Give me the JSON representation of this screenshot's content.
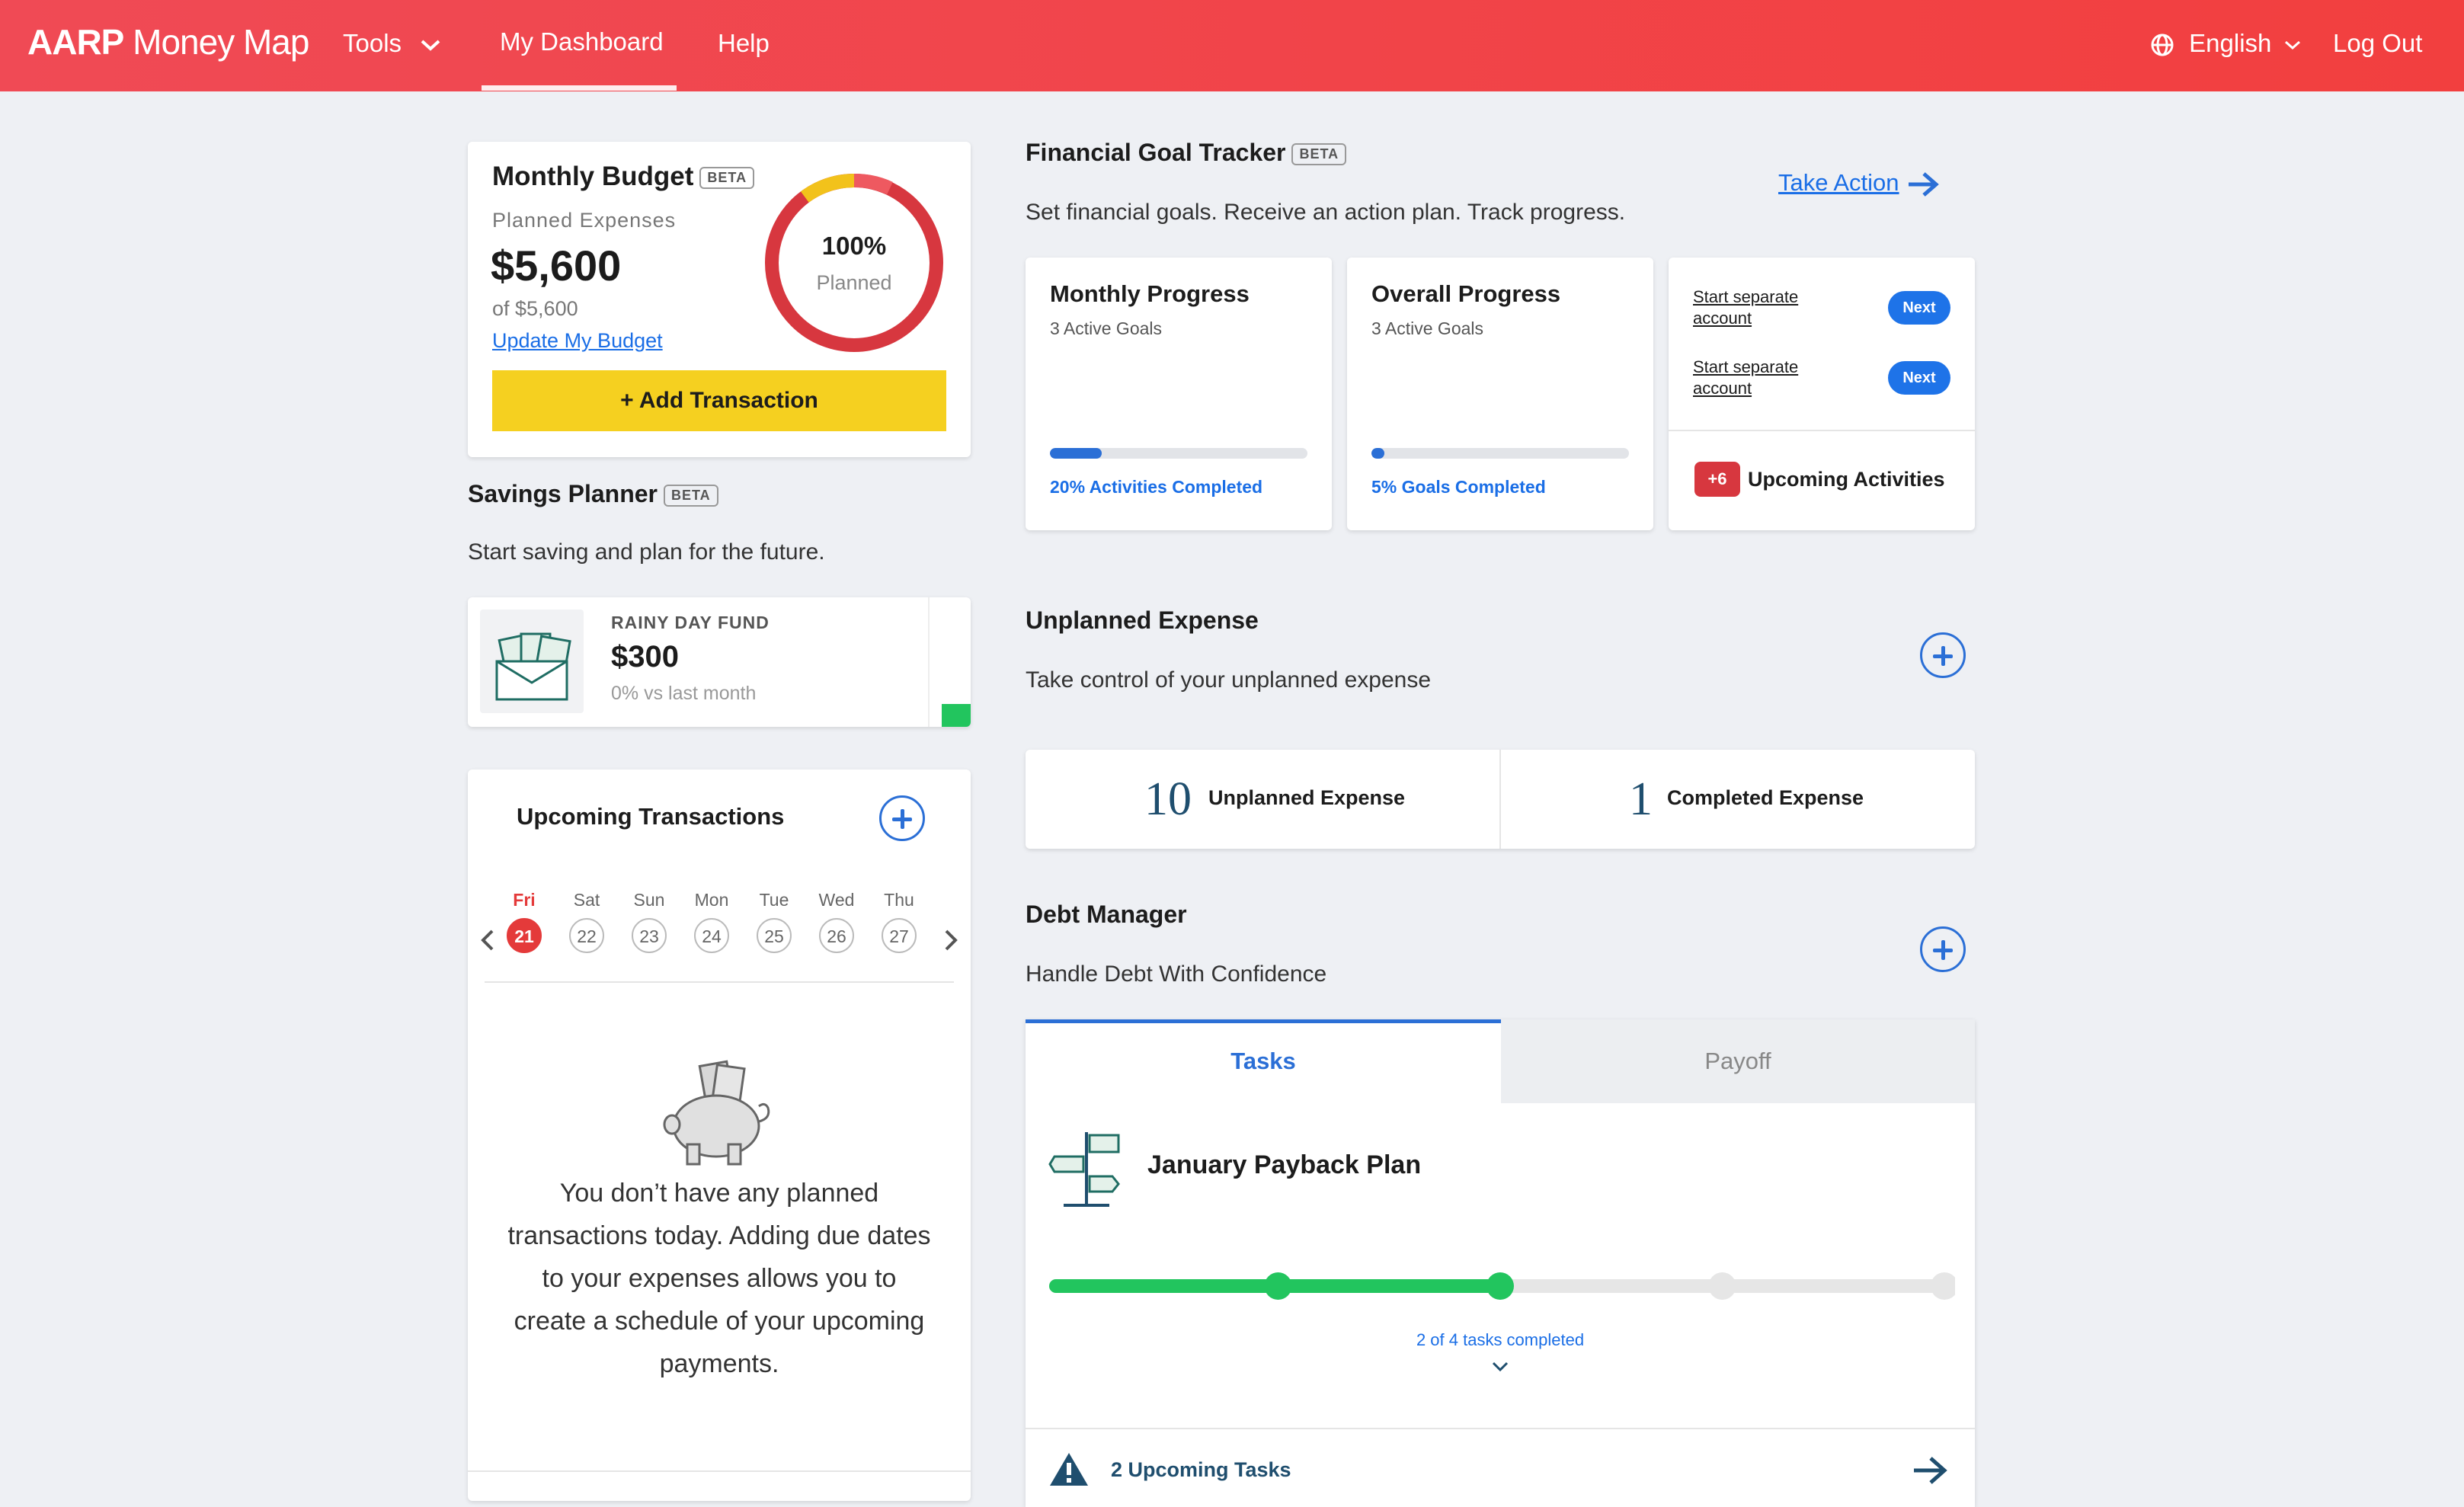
{
  "header": {
    "logo_brand": "AARP",
    "logo_product": "Money Map",
    "nav": {
      "tools": "Tools",
      "dashboard": "My Dashboard",
      "help": "Help"
    },
    "language": "English",
    "logout": "Log Out"
  },
  "monthly_budget": {
    "title": "Monthly Budget",
    "beta": "BETA",
    "planned_label": "Planned Expenses",
    "amount": "$5,600",
    "of_amount": "of $5,600",
    "update_link": "Update My Budget",
    "donut_percent": "100%",
    "donut_label": "Planned",
    "add_transaction": "+ Add Transaction"
  },
  "savings_planner": {
    "title": "Savings Planner",
    "beta": "BETA",
    "subtitle": "Start saving and plan for the future.",
    "fund_name": "RAINY DAY FUND",
    "fund_amount": "$300",
    "fund_change": "0% vs last month"
  },
  "upcoming_transactions": {
    "title": "Upcoming Transactions",
    "days": [
      {
        "dow": "Fri",
        "num": "21"
      },
      {
        "dow": "Sat",
        "num": "22"
      },
      {
        "dow": "Sun",
        "num": "23"
      },
      {
        "dow": "Mon",
        "num": "24"
      },
      {
        "dow": "Tue",
        "num": "25"
      },
      {
        "dow": "Wed",
        "num": "26"
      },
      {
        "dow": "Thu",
        "num": "27"
      }
    ],
    "empty_message": "You don’t have any planned transactions today. Adding due dates to your expenses allows you to create a schedule of your upcoming payments."
  },
  "goal_tracker": {
    "title": "Financial Goal Tracker",
    "beta": "BETA",
    "subtitle": "Set financial goals. Receive an action plan. Track progress.",
    "take_action": "Take Action",
    "monthly": {
      "title": "Monthly Progress",
      "sub": "3 Active Goals",
      "progress": 0.2,
      "caption": "20% Activities Completed"
    },
    "overall": {
      "title": "Overall Progress",
      "sub": "3 Active Goals",
      "progress": 0.05,
      "caption": "5% Goals Completed"
    },
    "activities": [
      {
        "label": "Start separate account",
        "button": "Next"
      },
      {
        "label": "Start separate account",
        "button": "Next"
      }
    ],
    "upcoming_badge": "+6",
    "upcoming_label": "Upcoming Activities"
  },
  "unplanned_expense": {
    "title": "Unplanned Expense",
    "subtitle": "Take control of your unplanned expense",
    "unplanned_count": "10",
    "unplanned_label": "Unplanned Expense",
    "completed_count": "1",
    "completed_label": "Completed Expense"
  },
  "debt_manager": {
    "title": "Debt Manager",
    "subtitle": "Handle Debt With Confidence",
    "tabs": [
      "Tasks",
      "Payoff"
    ],
    "plan_name": "January Payback Plan",
    "tasks_completed": 2,
    "tasks_total": 4,
    "tasks_caption": "2 of 4 tasks completed",
    "upcoming_tasks": "2 Upcoming Tasks"
  },
  "colors": {
    "brand": "#f04a55",
    "accent": "#2b6fd6",
    "cta": "#f5d020",
    "success": "#22c55e"
  }
}
